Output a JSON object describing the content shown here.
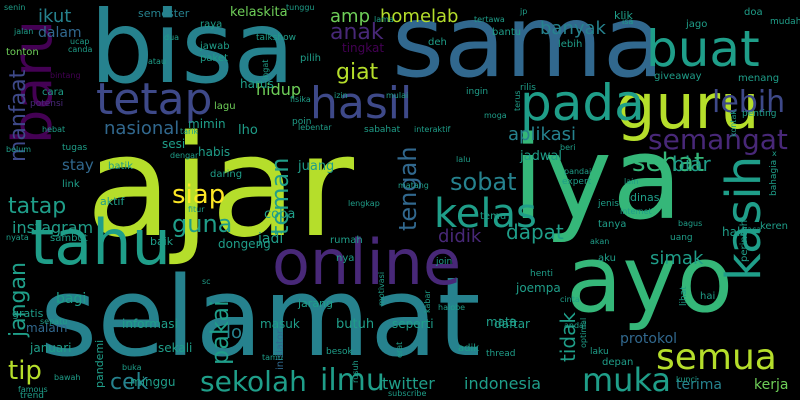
{
  "palette": {
    "background": "#000000",
    "dark_purple": "#440154",
    "indigo": "#482878",
    "blue_purple": "#3e4989",
    "steel_blue": "#31688e",
    "teal_blue": "#26828e",
    "teal": "#1f9e89",
    "green_teal": "#35b779",
    "green": "#6ece58",
    "lime": "#b5de2b",
    "yellow": "#fde725"
  },
  "words": [
    {
      "text": "ajar"
    },
    {
      "text": "iya"
    },
    {
      "text": "sama"
    },
    {
      "text": "selamat"
    },
    {
      "text": "bisa"
    },
    {
      "text": "ayo"
    },
    {
      "text": "tahu"
    },
    {
      "text": "online"
    },
    {
      "text": "guru"
    },
    {
      "text": "baru"
    },
    {
      "text": "buat"
    },
    {
      "text": "pada"
    },
    {
      "text": "hasil"
    },
    {
      "text": "tetap"
    },
    {
      "text": "kasih"
    },
    {
      "text": "semua"
    },
    {
      "text": "kelas"
    },
    {
      "text": "sekolah"
    },
    {
      "text": "ilmu"
    },
    {
      "text": "muka"
    },
    {
      "text": "lebih"
    },
    {
      "text": "semangat"
    },
    {
      "text": "sehat"
    },
    {
      "text": "sobat"
    },
    {
      "text": "tengah"
    },
    {
      "text": "teman"
    },
    {
      "text": "siap"
    },
    {
      "text": "guna"
    },
    {
      "text": "tip"
    },
    {
      "text": "cek"
    },
    {
      "text": "pakai"
    },
    {
      "text": "manfaat"
    },
    {
      "text": "tatap"
    },
    {
      "text": "jangan"
    },
    {
      "text": "giat"
    },
    {
      "text": "anak"
    },
    {
      "text": "amp"
    },
    {
      "text": "homelab"
    },
    {
      "text": "ikut"
    },
    {
      "text": "banyak"
    },
    {
      "text": "nasional"
    },
    {
      "text": "aplikasi"
    },
    {
      "text": "didik"
    },
    {
      "text": "dapat"
    },
    {
      "text": "tidak"
    },
    {
      "text": "simak"
    },
    {
      "text": "biar"
    },
    {
      "text": "hidup"
    },
    {
      "text": "instagram"
    },
    {
      "text": "loh"
    },
    {
      "text": "indonesia"
    },
    {
      "text": "twitter"
    },
    {
      "text": "terima"
    },
    {
      "text": "kerja"
    },
    {
      "text": "protokol"
    },
    {
      "text": "kelaskita"
    },
    {
      "text": "semester"
    },
    {
      "text": "dalam"
    },
    {
      "text": "stay"
    },
    {
      "text": "jadi"
    },
    {
      "text": "sesi"
    },
    {
      "text": "juang"
    },
    {
      "text": "coba"
    },
    {
      "text": "lho"
    },
    {
      "text": "harus"
    },
    {
      "text": "mimin"
    },
    {
      "text": "tingkat"
    },
    {
      "text": "sekali"
    },
    {
      "text": "januari"
    },
    {
      "text": "bagi"
    },
    {
      "text": "malam"
    },
    {
      "text": "minggu"
    },
    {
      "text": "jadwal"
    },
    {
      "text": "butuh"
    },
    {
      "text": "joempa"
    },
    {
      "text": "daftar"
    },
    {
      "text": "mata"
    },
    {
      "text": "depan"
    },
    {
      "text": "klik"
    },
    {
      "text": "jago"
    },
    {
      "text": "lagu"
    },
    {
      "text": "rumah"
    },
    {
      "text": "dongeng"
    },
    {
      "text": "baik"
    },
    {
      "text": "link"
    },
    {
      "text": "aktif"
    },
    {
      "text": "habis"
    },
    {
      "text": "daring"
    },
    {
      "text": "masuk"
    },
    {
      "text": "jarang"
    },
    {
      "text": "seperti"
    },
    {
      "text": "informasi"
    },
    {
      "text": "pandemi"
    },
    {
      "text": "inisiator"
    },
    {
      "text": "batik"
    },
    {
      "text": "besok"
    },
    {
      "text": "adik"
    },
    {
      "text": "halo"
    },
    {
      "text": "tanya"
    },
    {
      "text": "aku"
    },
    {
      "text": "jenis"
    },
    {
      "text": "dinas"
    },
    {
      "text": "gratis"
    },
    {
      "text": "tonton"
    },
    {
      "text": "cara"
    },
    {
      "text": "potensi"
    },
    {
      "text": "bintang"
    },
    {
      "text": "jawab"
    },
    {
      "text": "paket"
    },
    {
      "text": "raya"
    },
    {
      "text": "giveaway"
    },
    {
      "text": "menang"
    },
    {
      "text": "doa"
    },
    {
      "text": "mudah"
    },
    {
      "text": "lebih"
    },
    {
      "text": "bantu"
    },
    {
      "text": "pilih"
    },
    {
      "text": "rilis"
    },
    {
      "text": "ingin"
    },
    {
      "text": "talkshow"
    },
    {
      "text": "sabahat"
    },
    {
      "text": "interaktif"
    },
    {
      "text": "poin"
    },
    {
      "text": "deh"
    },
    {
      "text": "nya"
    },
    {
      "text": "temu"
    },
    {
      "text": "expert"
    },
    {
      "text": "thread"
    },
    {
      "text": "laku"
    },
    {
      "text": "kunci"
    },
    {
      "text": "subscribe"
    },
    {
      "text": "famous"
    },
    {
      "text": "trend"
    },
    {
      "text": "bawah"
    },
    {
      "text": "sambut"
    },
    {
      "text": "nyata"
    },
    {
      "text": "sepatu"
    },
    {
      "text": "join"
    },
    {
      "text": "motivasi"
    },
    {
      "text": "henti"
    },
    {
      "text": "cinta"
    },
    {
      "text": "lihat"
    },
    {
      "text": "hai"
    },
    {
      "text": "perintah"
    },
    {
      "text": "keren"
    },
    {
      "text": "bahagia"
    },
    {
      "text": "uang"
    },
    {
      "text": "akan"
    },
    {
      "text": "baca"
    },
    {
      "text": "bagus"
    },
    {
      "text": "internet"
    },
    {
      "text": "penting"
    },
    {
      "text": "kontak"
    },
    {
      "text": "lain"
    },
    {
      "text": "pandai"
    },
    {
      "text": "beri"
    },
    {
      "text": "moga"
    },
    {
      "text": "lalu"
    },
    {
      "text": "tugas"
    },
    {
      "text": "belum"
    },
    {
      "text": "hebat"
    },
    {
      "text": "atau"
    },
    {
      "text": "lengkap"
    },
    {
      "text": "fitur"
    },
    {
      "text": "dengar"
    },
    {
      "text": "tarik"
    },
    {
      "text": "fisika"
    },
    {
      "text": "terus"
    },
    {
      "text": "jp"
    },
    {
      "text": "isa"
    },
    {
      "text": "jalan"
    },
    {
      "text": "senin"
    },
    {
      "text": "ucap"
    },
    {
      "text": "canda"
    },
    {
      "text": "tunggu"
    },
    {
      "text": "tertawa"
    },
    {
      "text": "lama"
    },
    {
      "text": "dua"
    },
    {
      "text": "ingat"
    },
    {
      "text": "izin"
    },
    {
      "text": "mulai"
    },
    {
      "text": "kabar"
    },
    {
      "text": "optimal"
    },
    {
      "text": "andal"
    },
    {
      "text": "halobe"
    },
    {
      "text": "tamu"
    },
    {
      "text": "buka"
    },
    {
      "text": "sc"
    },
    {
      "text": "x"
    },
    {
      "text": "erat"
    },
    {
      "text": "rusuh"
    },
    {
      "text": "lebentar"
    },
    {
      "text": "matang"
    }
  ]
}
